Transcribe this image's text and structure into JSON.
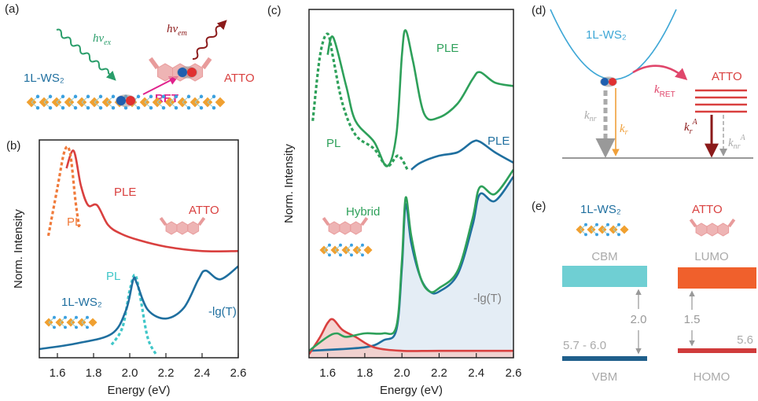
{
  "chart_data": [
    {
      "type": "line",
      "panel": "(b)",
      "x_label": "Energy (eV)",
      "y_label": "Norm. Intensity",
      "xlim": [
        1.5,
        2.6
      ],
      "ylim": [
        0,
        1
      ],
      "xticks": [
        1.6,
        1.8,
        {
          "value": 2,
          "label": "2.0"
        },
        2.2,
        2.4,
        2.6
      ],
      "series": [
        {
          "name": "PLE",
          "color": "#d9403f",
          "x": [
            1.65,
            1.69,
            1.73,
            1.77,
            1.82,
            1.88,
            1.95,
            2.05,
            2.2,
            2.4,
            2.6
          ],
          "values": [
            0.87,
            0.95,
            0.79,
            0.7,
            0.7,
            0.61,
            0.57,
            0.54,
            0.51,
            0.49,
            0.49
          ]
        },
        {
          "name": "PL",
          "color": "#f07a3a",
          "dashed": true,
          "x": [
            1.55,
            1.6,
            1.64,
            1.67,
            1.7,
            1.72
          ],
          "values": [
            0.56,
            0.78,
            0.95,
            0.94,
            0.72,
            0.6
          ]
        },
        {
          "name": "PL",
          "color": "#3fc6c8",
          "dashed": true,
          "x": [
            1.9,
            1.96,
            2,
            2.03,
            2.06,
            2.1,
            2.15
          ],
          "values": [
            0.06,
            0.14,
            0.31,
            0.38,
            0.27,
            0.09,
            0.01
          ]
        },
        {
          "name": "-lg(T)",
          "color": "#1f6f9f",
          "x": [
            1.5,
            1.7,
            1.9,
            1.98,
            2.02,
            2.04,
            2.1,
            2.2,
            2.3,
            2.38,
            2.42,
            2.5,
            2.6
          ],
          "values": [
            0.04,
            0.065,
            0.11,
            0.22,
            0.36,
            0.34,
            0.22,
            0.18,
            0.23,
            0.36,
            0.4,
            0.36,
            0.42
          ]
        }
      ],
      "annotations": [
        {
          "text": "ATTO",
          "color": "#d9403f"
        },
        {
          "text": "1L-WS₂",
          "color": "#1f6f9f"
        }
      ]
    },
    {
      "type": "line",
      "panel": "(c)",
      "x_label": "Energy (eV)",
      "y_label": "Norm. Intensity",
      "xlim": [
        1.5,
        2.6
      ],
      "ylim": [
        0,
        1
      ],
      "xticks": [
        1.6,
        1.8,
        {
          "value": 2,
          "label": "2.0"
        },
        2.2,
        2.4,
        2.6
      ],
      "series": [
        {
          "name": "PLE",
          "color": "#2ea05a",
          "x": [
            1.6,
            1.63,
            1.7,
            1.75,
            1.85,
            1.92,
            1.97,
            2,
            2.02,
            2.06,
            2.12,
            2.2,
            2.3,
            2.38,
            2.42,
            2.5,
            2.6
          ],
          "values": [
            0.87,
            0.92,
            0.78,
            0.68,
            0.62,
            0.55,
            0.64,
            0.87,
            0.94,
            0.85,
            0.7,
            0.69,
            0.73,
            0.8,
            0.82,
            0.79,
            0.78
          ]
        },
        {
          "name": "PL",
          "color": "#2ea05a",
          "dashed": true,
          "x": [
            1.52,
            1.56,
            1.6,
            1.63,
            1.68,
            1.75,
            1.85,
            1.92,
            1.98,
            2.03
          ],
          "values": [
            0.68,
            0.87,
            0.93,
            0.86,
            0.73,
            0.64,
            0.6,
            0.55,
            0.58,
            0.54
          ]
        },
        {
          "name": "PLE",
          "color": "#1f6f9f",
          "x": [
            2.05,
            2.1,
            2.2,
            2.3,
            2.38,
            2.42,
            2.5,
            2.6
          ],
          "values": [
            0.54,
            0.56,
            0.58,
            0.59,
            0.62,
            0.62,
            0.59,
            0.56
          ]
        },
        {
          "name": "-lg(T)",
          "color": "#1f6f9f",
          "label_color": "#808080",
          "fill": "#dde9f3",
          "x": [
            1.5,
            1.8,
            1.9,
            1.97,
            2,
            2.02,
            2.05,
            2.1,
            2.15,
            2.2,
            2.3,
            2.38,
            2.42,
            2.5,
            2.6
          ],
          "values": [
            0.02,
            0.03,
            0.05,
            0.08,
            0.26,
            0.44,
            0.33,
            0.23,
            0.19,
            0.19,
            0.24,
            0.38,
            0.47,
            0.45,
            0.52
          ]
        },
        {
          "color": "#d9403f",
          "fill": "#f3c9c6",
          "x": [
            1.5,
            1.56,
            1.6,
            1.63,
            1.68,
            1.75,
            1.85,
            2,
            2.2,
            2.6
          ],
          "values": [
            0.01,
            0.06,
            0.1,
            0.11,
            0.08,
            0.06,
            0.03,
            0.02,
            0.02,
            0.02
          ]
        },
        {
          "name": "Hybrid",
          "color": "#2ea05a",
          "x": [
            1.5,
            1.6,
            1.65,
            1.7,
            1.8,
            1.9,
            1.97,
            2,
            2.02,
            2.05,
            2.1,
            2.15,
            2.2,
            2.3,
            2.38,
            2.42,
            2.5,
            2.6
          ],
          "values": [
            0.02,
            0.06,
            0.07,
            0.06,
            0.07,
            0.07,
            0.09,
            0.28,
            0.46,
            0.35,
            0.23,
            0.19,
            0.2,
            0.25,
            0.4,
            0.49,
            0.47,
            0.54
          ]
        }
      ],
      "annotations": []
    }
  ],
  "panel_a": {
    "label": "(a)",
    "hv_ex": {
      "main": "hν",
      "sub": "ex"
    },
    "hv_em": {
      "main": "hν",
      "sub": "em"
    },
    "ws2": "1L-WS₂",
    "atto": "ATTO",
    "ret": "RET"
  },
  "panel_d": {
    "label": "(d)",
    "ws2": "1L-WS₂",
    "atto": "ATTO",
    "k_ret": {
      "main": "k",
      "sub": "RET"
    },
    "k_nr": {
      "main": "k",
      "sub": "nr"
    },
    "k_r": {
      "main": "k",
      "sub": "r"
    },
    "k_r_a": {
      "main": "k",
      "sub": "r",
      "sup": "A"
    },
    "k_nr_a": {
      "main": "k",
      "sub": "nr",
      "sup": "A"
    }
  },
  "panel_e": {
    "label": "(e)",
    "ws2": "1L-WS₂",
    "atto": "ATTO",
    "cbm": "CBM",
    "vbm": "VBM",
    "lumo": "LUMO",
    "homo": "HOMO",
    "ws2_vbm": "5.7 - 6.0",
    "ws2_gap": "2.0",
    "atto_gap": "1.5",
    "atto_homo": "5.6"
  }
}
